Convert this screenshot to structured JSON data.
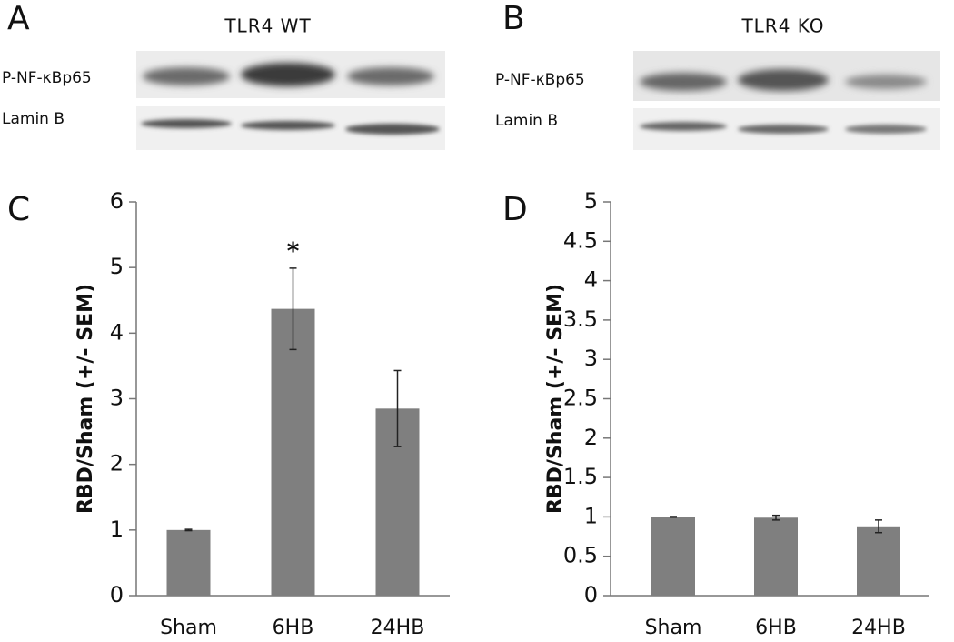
{
  "panels": {
    "a": {
      "letter": "A",
      "title": "TLR4 WT",
      "rows": [
        "P-NF-κBp65",
        "Lamin B"
      ]
    },
    "b": {
      "letter": "B",
      "title": "TLR4 KO",
      "rows": [
        "P-NF-κBp65",
        "Lamin B"
      ]
    },
    "c": {
      "letter": "C"
    },
    "d": {
      "letter": "D"
    }
  },
  "chart_data": [
    {
      "type": "bar",
      "ylabel": "RBD/Sham (+/- SEM)",
      "categories": [
        "Sham",
        "6HB",
        "24HB"
      ],
      "values": [
        1.0,
        4.37,
        2.85
      ],
      "errors": [
        0.01,
        0.62,
        0.58
      ],
      "color": "#7f7f7f",
      "annotation": "*",
      "ylim": [
        0,
        6
      ],
      "yticks": [
        0,
        1,
        2,
        3,
        4,
        5,
        6
      ]
    },
    {
      "type": "bar",
      "ylabel": "RBD/Sham (+/- SEM)",
      "categories": [
        "Sham",
        "6HB",
        "24HB"
      ],
      "values": [
        1.0,
        0.99,
        0.88
      ],
      "errors": [
        0.005,
        0.03,
        0.08
      ],
      "color": "#7f7f7f",
      "ylim": [
        0,
        5
      ],
      "yticks": [
        0,
        0.5,
        1,
        1.5,
        2,
        2.5,
        3,
        3.5,
        4,
        4.5,
        5
      ]
    }
  ]
}
